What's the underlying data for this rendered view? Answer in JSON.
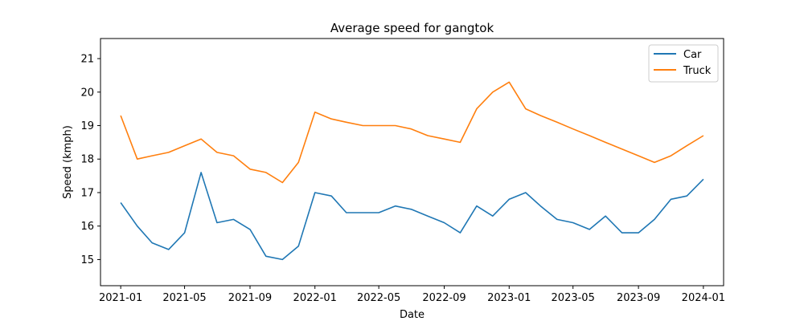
{
  "chart_data": {
    "type": "line",
    "title": "Average speed for gangtok",
    "xlabel": "Date",
    "ylabel": "Speed (kmph)",
    "x_ticks": [
      "2021-01",
      "2021-05",
      "2021-09",
      "2022-01",
      "2022-05",
      "2022-09",
      "2023-01",
      "2023-05",
      "2023-09",
      "2024-01"
    ],
    "y_ticks": [
      15,
      16,
      17,
      18,
      19,
      20,
      21
    ],
    "xlim": [
      "2020-11-24",
      "2024-02-08"
    ],
    "ylim": [
      14.22,
      21.6
    ],
    "grid": false,
    "legend_position": "top-right",
    "x": [
      "2021-01-01",
      "2021-02-01",
      "2021-03-01",
      "2021-04-01",
      "2021-05-01",
      "2021-06-01",
      "2021-07-01",
      "2021-08-01",
      "2021-09-01",
      "2021-10-01",
      "2021-11-01",
      "2021-12-01",
      "2022-01-01",
      "2022-02-01",
      "2022-03-01",
      "2022-04-01",
      "2022-05-01",
      "2022-06-01",
      "2022-07-01",
      "2022-08-01",
      "2022-09-01",
      "2022-10-01",
      "2022-11-01",
      "2022-12-01",
      "2023-01-01",
      "2023-02-01",
      "2023-03-01",
      "2023-04-01",
      "2023-05-01",
      "2023-06-01",
      "2023-07-01",
      "2023-08-01",
      "2023-09-01",
      "2023-10-01",
      "2023-11-01",
      "2023-12-01",
      "2024-01-01"
    ],
    "series": [
      {
        "name": "Car",
        "color": "#1f77b4",
        "values": [
          16.7,
          16.0,
          15.5,
          15.3,
          15.8,
          17.6,
          16.1,
          16.2,
          15.9,
          15.1,
          15.0,
          15.4,
          17.0,
          16.9,
          16.4,
          16.4,
          16.4,
          16.6,
          16.5,
          16.3,
          16.1,
          15.8,
          16.6,
          16.3,
          16.8,
          17.0,
          16.6,
          16.2,
          16.1,
          15.9,
          16.3,
          15.8,
          15.8,
          16.2,
          16.8,
          16.9,
          17.4
        ]
      },
      {
        "name": "Truck",
        "color": "#ff7f0e",
        "values": [
          19.3,
          18.0,
          18.1,
          18.2,
          18.4,
          18.6,
          18.2,
          18.1,
          17.7,
          17.6,
          17.3,
          17.9,
          19.4,
          19.2,
          19.1,
          19.0,
          19.0,
          19.0,
          18.9,
          18.7,
          18.6,
          18.5,
          19.5,
          20.0,
          20.3,
          19.5,
          19.3,
          19.1,
          18.9,
          18.7,
          18.5,
          18.3,
          18.1,
          17.9,
          18.1,
          18.4,
          18.7
        ]
      }
    ]
  }
}
